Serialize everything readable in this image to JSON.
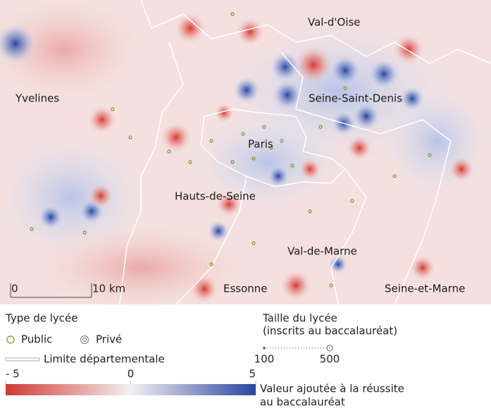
{
  "map": {
    "labels": [
      "Val-d'Oise",
      "Yvelines",
      "Seine-Saint-Denis",
      "Paris",
      "Hauts-de-Seine",
      "Val-de-Marne",
      "Essonne",
      "Seine-et-Marne"
    ],
    "scale_bar": {
      "ticks": [
        {
          "value": 0,
          "label": "0"
        },
        {
          "value": 10,
          "label": "10 km"
        }
      ]
    }
  },
  "legend": {
    "school_type": {
      "title": "Type de lycée",
      "items": [
        "Public",
        "Privé"
      ]
    },
    "boundary": "Limite départementale",
    "size": {
      "title": "Taille du lycée",
      "subtitle": "(inscrits au baccalauréat)",
      "ticks": [
        100,
        500
      ]
    },
    "color_scale": {
      "ticks": [
        {
          "value": -5,
          "label": "- 5"
        },
        0,
        5
      ],
      "title": [
        "Valeur ajoutée à la réussite",
        "au baccalauréat"
      ]
    }
  }
}
